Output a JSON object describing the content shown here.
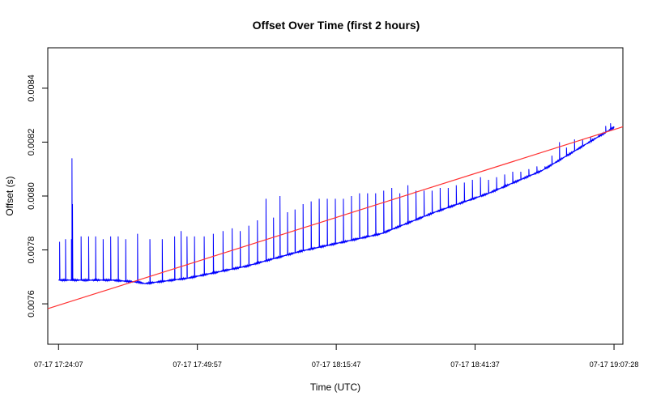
{
  "chart_data": {
    "type": "line",
    "title": "Offset Over Time (first 2 hours)",
    "xlabel": "Time (UTC)",
    "ylabel": "Offset (s)",
    "x_ticks": [
      "07-17 17:24:07",
      "07-17 17:49:57",
      "07-17 18:15:47",
      "07-17 18:41:37",
      "07-17 19:07:28"
    ],
    "x_tick_minutes": [
      0,
      25.83,
      51.67,
      77.5,
      103.35
    ],
    "xlim_minutes": [
      -2,
      105
    ],
    "y_ticks": [
      0.0076,
      0.0078,
      0.008,
      0.0082,
      0.0084
    ],
    "y_tick_labels": [
      "0.0076",
      "0.0078",
      "0.0080",
      "0.0082",
      "0.0084"
    ],
    "ylim": [
      0.00745,
      0.00855
    ],
    "grid": false,
    "series": [
      {
        "color": "#0000ff",
        "description_points": {
          "x_minutes": [
            0,
            10,
            15,
            16,
            24,
            35,
            45,
            60,
            70,
            80,
            90,
            103.35
          ],
          "y": [
            0.007688,
            0.007688,
            0.00768,
            0.007675,
            0.007695,
            0.00774,
            0.007795,
            0.00786,
            0.00794,
            0.00801,
            0.008095,
            0.008255
          ]
        },
        "spikes_minutes_and_peaks": [
          [
            0.2,
            0.00783
          ],
          [
            1.3,
            0.00784
          ],
          [
            2.4,
            0.00784
          ],
          [
            2.5,
            0.00814
          ],
          [
            2.6,
            0.00797
          ],
          [
            4.2,
            0.00785
          ],
          [
            5.6,
            0.00785
          ],
          [
            6.9,
            0.00785
          ],
          [
            8.3,
            0.00784
          ],
          [
            9.7,
            0.00785
          ],
          [
            11.1,
            0.00785
          ],
          [
            12.5,
            0.00784
          ],
          [
            14.7,
            0.00786
          ],
          [
            17.0,
            0.00784
          ],
          [
            19.3,
            0.00784
          ],
          [
            21.6,
            0.00785
          ],
          [
            22.8,
            0.00787
          ],
          [
            23.9,
            0.00785
          ],
          [
            25.3,
            0.00785
          ],
          [
            27.1,
            0.00785
          ],
          [
            28.8,
            0.00786
          ],
          [
            30.6,
            0.00787
          ],
          [
            32.3,
            0.00788
          ],
          [
            33.8,
            0.00787
          ],
          [
            35.4,
            0.00789
          ],
          [
            37.0,
            0.00791
          ],
          [
            38.6,
            0.00799
          ],
          [
            40.0,
            0.00792
          ],
          [
            41.2,
            0.008
          ],
          [
            42.6,
            0.00794
          ],
          [
            44.0,
            0.00795
          ],
          [
            45.5,
            0.00797
          ],
          [
            47.0,
            0.00798
          ],
          [
            48.5,
            0.00799
          ],
          [
            50.0,
            0.00799
          ],
          [
            51.5,
            0.00799
          ],
          [
            53.0,
            0.00799
          ],
          [
            54.5,
            0.008
          ],
          [
            56.0,
            0.00801
          ],
          [
            57.5,
            0.00801
          ],
          [
            59.0,
            0.00801
          ],
          [
            60.5,
            0.00802
          ],
          [
            62.0,
            0.00803
          ],
          [
            63.5,
            0.00801
          ],
          [
            65.0,
            0.00804
          ],
          [
            66.5,
            0.00802
          ],
          [
            68.0,
            0.00802
          ],
          [
            69.5,
            0.00802
          ],
          [
            71.0,
            0.00803
          ],
          [
            72.5,
            0.00803
          ],
          [
            74.0,
            0.00804
          ],
          [
            75.5,
            0.00805
          ],
          [
            77.0,
            0.00806
          ],
          [
            78.5,
            0.00807
          ],
          [
            80.0,
            0.00806
          ],
          [
            81.5,
            0.00807
          ],
          [
            83.0,
            0.00808
          ],
          [
            84.5,
            0.00809
          ],
          [
            86.0,
            0.00809
          ],
          [
            87.5,
            0.0081
          ],
          [
            89.0,
            0.00811
          ],
          [
            90.5,
            0.00811
          ],
          [
            91.8,
            0.00815
          ],
          [
            93.2,
            0.0082
          ],
          [
            94.5,
            0.00818
          ],
          [
            96.0,
            0.00821
          ],
          [
            97.5,
            0.00821
          ],
          [
            99.0,
            0.00822
          ],
          [
            100.5,
            0.00823
          ],
          [
            101.8,
            0.00826
          ],
          [
            102.7,
            0.00827
          ]
        ]
      },
      {
        "color": "#ff3333",
        "description_points": {
          "x_minutes": [
            -2,
            105
          ],
          "y": [
            0.007582,
            0.008257
          ]
        }
      }
    ]
  }
}
